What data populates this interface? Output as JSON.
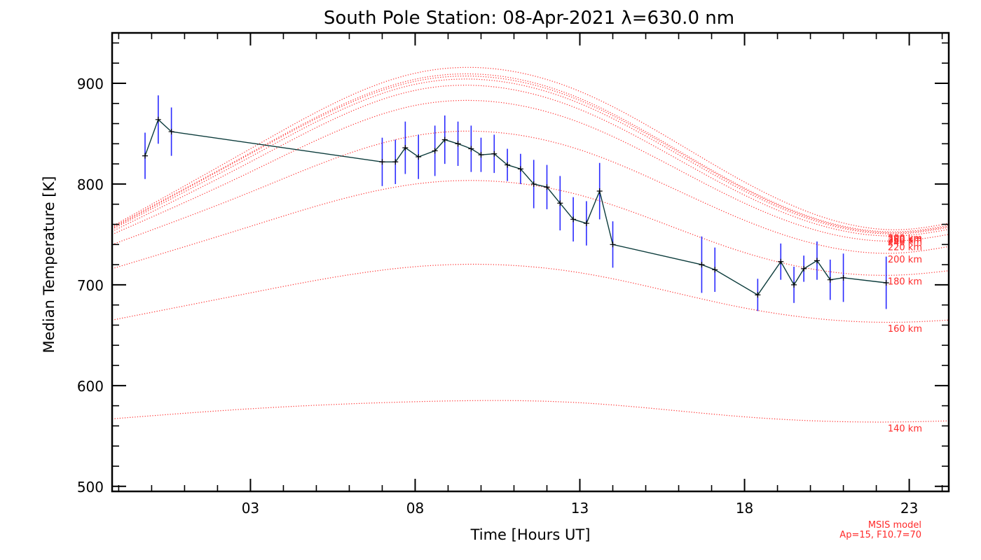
{
  "chart_data": {
    "type": "line",
    "title": "South Pole Station: 08-Apr-2021 λ=630.0 nm",
    "xlabel": "Time [Hours UT]",
    "ylabel": "Median Temperature [K]",
    "xlim": [
      -1.2,
      24.2
    ],
    "ylim": [
      495,
      950
    ],
    "x_ticks": [
      3,
      8,
      13,
      18,
      23
    ],
    "x_tick_labels": [
      "03",
      "08",
      "13",
      "18",
      "23"
    ],
    "y_ticks": [
      500,
      600,
      700,
      800,
      900
    ],
    "y_tick_labels": [
      "500",
      "600",
      "700",
      "800",
      "900"
    ],
    "model_note": [
      "MSIS model",
      "Ap=15, F10.7=70"
    ],
    "colors": {
      "measured_line": "#0b3b3b",
      "error_bar": "#2a2aff",
      "model": "#ff2a2a"
    },
    "measured": {
      "name": "Median temperature",
      "x": [
        -0.2,
        0.2,
        0.6,
        7.0,
        7.4,
        7.7,
        8.1,
        8.6,
        8.9,
        9.3,
        9.7,
        10.0,
        10.4,
        10.8,
        11.2,
        11.6,
        12.0,
        12.4,
        12.8,
        13.2,
        13.6,
        14.0,
        16.7,
        17.1,
        18.4,
        19.1,
        19.5,
        19.8,
        20.2,
        20.6,
        21.0,
        22.3
      ],
      "y": [
        828,
        864,
        852,
        822,
        822,
        836,
        827,
        833,
        844,
        840,
        835,
        829,
        830,
        819,
        815,
        800,
        797,
        781,
        765,
        761,
        793,
        740,
        720,
        715,
        690,
        723,
        700,
        716,
        724,
        705,
        707,
        702
      ],
      "err": [
        23,
        24,
        24,
        24,
        22,
        26,
        22,
        25,
        24,
        22,
        23,
        17,
        19,
        16,
        15,
        24,
        22,
        27,
        22,
        22,
        28,
        23,
        28,
        22,
        16,
        18,
        18,
        13,
        19,
        20,
        24,
        26
      ]
    },
    "model_series": [
      {
        "name": "140 km",
        "x": [
          -1.2,
          3,
          8,
          13,
          18,
          22.9,
          24.2
        ],
        "y": [
          567,
          577,
          584,
          583,
          569,
          564,
          565
        ]
      },
      {
        "name": "160 km",
        "x": [
          -1.2,
          3,
          8,
          13,
          18,
          22.9,
          24.2
        ],
        "y": [
          665,
          692,
          718,
          712,
          677,
          663,
          665
        ]
      },
      {
        "name": "180 km",
        "x": [
          -1.2,
          3,
          8,
          13,
          18,
          22.9,
          24.2
        ],
        "y": [
          716,
          758,
          800,
          789,
          732,
          710,
          714
        ]
      },
      {
        "name": "200 km",
        "x": [
          -1.2,
          3,
          8,
          13,
          18,
          22.9,
          24.2
        ],
        "y": [
          740,
          792,
          848,
          834,
          764,
          732,
          738
        ]
      },
      {
        "name": "220 km",
        "x": [
          -1.2,
          3,
          8,
          13,
          18,
          22.9,
          24.2
        ],
        "y": [
          750,
          812,
          878,
          861,
          781,
          744,
          750
        ]
      },
      {
        "name": "240 km",
        "x": [
          -1.2,
          3,
          8,
          13,
          18,
          22.9,
          24.2
        ],
        "y": [
          753,
          822,
          893,
          874,
          789,
          749,
          755
        ]
      },
      {
        "name": "260 km",
        "x": [
          -1.2,
          3,
          8,
          13,
          18,
          22.9,
          24.2
        ],
        "y": [
          755,
          827,
          899,
          880,
          793,
          751,
          757
        ]
      },
      {
        "name": "280 km",
        "x": [
          -1.2,
          3,
          8,
          13,
          18,
          22.9,
          24.2
        ],
        "y": [
          756,
          830,
          902,
          883,
          795,
          752,
          758
        ]
      },
      {
        "name": "300 km",
        "x": [
          -1.2,
          3,
          8,
          13,
          18,
          22.9,
          24.2
        ],
        "y": [
          757,
          831,
          904,
          885,
          796,
          753,
          759
        ]
      },
      {
        "name": "",
        "x": [
          -1.2,
          3,
          8,
          13,
          18,
          22.9,
          24.2
        ],
        "y": [
          758,
          835,
          910,
          892,
          802,
          755,
          761
        ]
      }
    ]
  }
}
